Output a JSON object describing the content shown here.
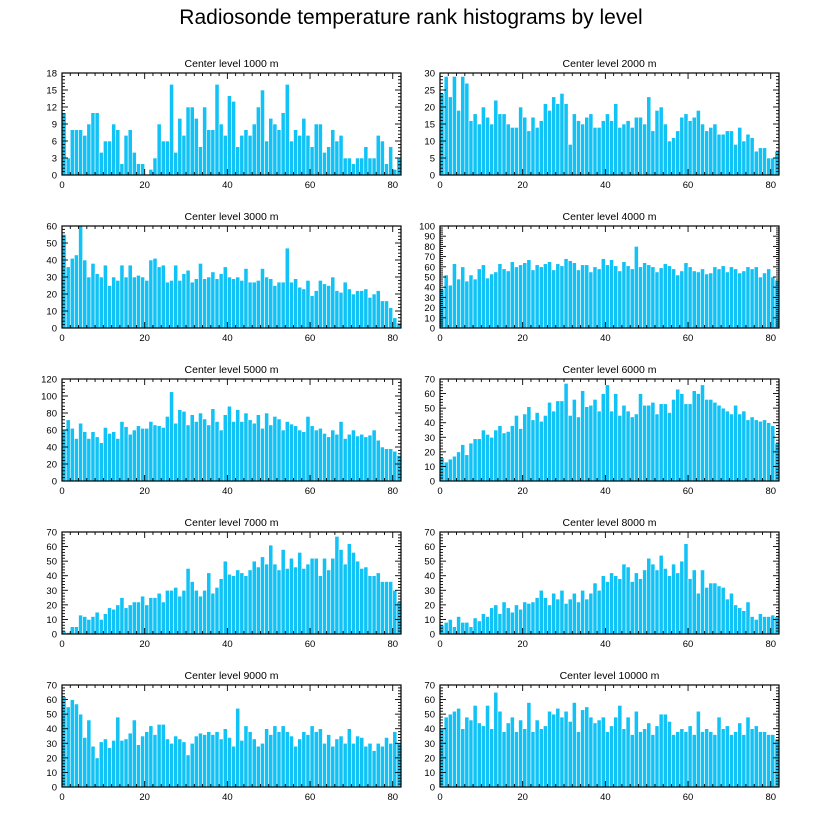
{
  "title": "Radiosonde temperature rank histograms by level",
  "colors": {
    "bar": "#10c2f5",
    "bar_edge": "#ffffff",
    "axis": "#000000"
  },
  "chart_data": [
    {
      "type": "bar",
      "title": "Center level 1000 m",
      "xlim": [
        0,
        82
      ],
      "ylim": [
        0,
        18
      ],
      "xticks": [
        0,
        20,
        40,
        60,
        80
      ],
      "yticks": [
        0,
        3,
        6,
        9,
        12,
        15,
        18
      ],
      "values": [
        11,
        3,
        8,
        8,
        8,
        7,
        9,
        11,
        11,
        4,
        6,
        6,
        9,
        8,
        2,
        7,
        8,
        4,
        2,
        2,
        0,
        1,
        3,
        9,
        6,
        6,
        16,
        4,
        10,
        7,
        12,
        12,
        10,
        5,
        12,
        8,
        8,
        16,
        9,
        7,
        14,
        13,
        5,
        7,
        8,
        7,
        9,
        12,
        15,
        6,
        10,
        9,
        8,
        11,
        16,
        6,
        8,
        7,
        10,
        7,
        5,
        9,
        9,
        4,
        5,
        8,
        6,
        7,
        3,
        3,
        2,
        3,
        3,
        5,
        3,
        3,
        7,
        6,
        2,
        5,
        1,
        3
      ],
      "xlabel": "",
      "ylabel": ""
    },
    {
      "type": "bar",
      "title": "Center level 2000 m",
      "xlim": [
        0,
        82
      ],
      "ylim": [
        0,
        30
      ],
      "xticks": [
        0,
        20,
        40,
        60,
        80
      ],
      "yticks": [
        0,
        5,
        10,
        15,
        20,
        25,
        30
      ],
      "values": [
        24,
        29,
        23,
        29,
        19,
        29,
        27,
        16,
        18,
        15,
        20,
        17,
        15,
        22,
        18,
        18,
        15,
        14,
        14,
        20,
        17,
        13,
        17,
        14,
        16,
        21,
        19,
        23,
        21,
        24,
        21,
        9,
        18,
        16,
        15,
        17,
        18,
        14,
        14,
        16,
        18,
        16,
        21,
        14,
        15,
        16,
        14,
        17,
        17,
        15,
        23,
        13,
        19,
        20,
        15,
        10,
        11,
        13,
        17,
        18,
        16,
        17,
        19,
        15,
        13,
        14,
        15,
        12,
        12,
        13,
        13,
        9,
        14,
        10,
        12,
        11,
        7,
        8,
        8,
        5,
        5,
        7
      ],
      "xlabel": "",
      "ylabel": ""
    },
    {
      "type": "bar",
      "title": "Center level 3000 m",
      "xlim": [
        0,
        82
      ],
      "ylim": [
        0,
        60
      ],
      "xticks": [
        0,
        20,
        40,
        60,
        80
      ],
      "yticks": [
        0,
        10,
        20,
        30,
        40,
        50,
        60
      ],
      "values": [
        55,
        36,
        41,
        43,
        60,
        40,
        30,
        38,
        32,
        30,
        37,
        25,
        30,
        28,
        37,
        30,
        37,
        30,
        31,
        30,
        28,
        40,
        41,
        36,
        37,
        27,
        28,
        37,
        28,
        32,
        34,
        27,
        29,
        38,
        29,
        30,
        33,
        29,
        32,
        36,
        30,
        29,
        30,
        28,
        35,
        27,
        27,
        28,
        35,
        30,
        29,
        25,
        27,
        27,
        47,
        27,
        29,
        24,
        23,
        28,
        19,
        22,
        28,
        26,
        25,
        30,
        22,
        21,
        27,
        23,
        20,
        22,
        22,
        23,
        18,
        20,
        22,
        16,
        16,
        12,
        6,
        3
      ],
      "xlabel": "",
      "ylabel": ""
    },
    {
      "type": "bar",
      "title": "Center level 4000 m",
      "xlim": [
        0,
        82
      ],
      "ylim": [
        0,
        100
      ],
      "xticks": [
        0,
        20,
        40,
        60,
        80
      ],
      "yticks": [
        0,
        10,
        20,
        30,
        40,
        50,
        60,
        70,
        80,
        90,
        100
      ],
      "values": [
        38,
        52,
        42,
        63,
        48,
        60,
        46,
        52,
        48,
        58,
        62,
        49,
        53,
        55,
        63,
        58,
        56,
        65,
        60,
        62,
        64,
        67,
        57,
        62,
        60,
        63,
        65,
        57,
        63,
        61,
        68,
        66,
        64,
        57,
        62,
        62,
        55,
        60,
        58,
        68,
        62,
        67,
        61,
        56,
        65,
        61,
        58,
        80,
        60,
        64,
        62,
        60,
        55,
        59,
        63,
        61,
        58,
        52,
        56,
        64,
        60,
        56,
        55,
        58,
        53,
        54,
        60,
        58,
        61,
        55,
        60,
        58,
        54,
        56,
        60,
        58,
        60,
        50,
        54,
        58,
        50,
        47
      ],
      "xlabel": "",
      "ylabel": ""
    },
    {
      "type": "bar",
      "title": "Center level 5000 m",
      "xlim": [
        0,
        82
      ],
      "ylim": [
        0,
        120
      ],
      "xticks": [
        0,
        20,
        40,
        60,
        80
      ],
      "yticks": [
        0,
        20,
        40,
        60,
        80,
        100,
        120
      ],
      "values": [
        60,
        72,
        62,
        50,
        68,
        58,
        50,
        58,
        52,
        45,
        63,
        56,
        58,
        50,
        70,
        64,
        55,
        60,
        65,
        62,
        62,
        70,
        66,
        65,
        63,
        76,
        105,
        68,
        84,
        82,
        66,
        78,
        70,
        80,
        73,
        66,
        85,
        70,
        60,
        78,
        88,
        70,
        84,
        70,
        80,
        72,
        68,
        78,
        62,
        80,
        66,
        76,
        73,
        60,
        70,
        67,
        65,
        60,
        58,
        76,
        65,
        60,
        62,
        56,
        52,
        60,
        55,
        70,
        50,
        55,
        60,
        53,
        55,
        52,
        54,
        60,
        48,
        40,
        38,
        38,
        35,
        30
      ],
      "xlabel": "",
      "ylabel": ""
    },
    {
      "type": "bar",
      "title": "Center level 6000 m",
      "xlim": [
        0,
        82
      ],
      "ylim": [
        0,
        70
      ],
      "xticks": [
        0,
        20,
        40,
        60,
        80
      ],
      "yticks": [
        0,
        10,
        20,
        30,
        40,
        50,
        60,
        70
      ],
      "values": [
        16,
        13,
        15,
        17,
        20,
        25,
        18,
        26,
        29,
        29,
        35,
        32,
        30,
        35,
        38,
        33,
        34,
        38,
        45,
        36,
        46,
        51,
        42,
        47,
        41,
        45,
        54,
        48,
        55,
        55,
        67,
        45,
        56,
        44,
        62,
        51,
        52,
        56,
        48,
        60,
        66,
        48,
        60,
        45,
        52,
        48,
        44,
        46,
        60,
        52,
        52,
        54,
        46,
        53,
        53,
        47,
        56,
        63,
        60,
        53,
        53,
        62,
        60,
        66,
        56,
        56,
        54,
        52,
        50,
        48,
        46,
        52,
        46,
        48,
        42,
        44,
        42,
        41,
        42,
        40,
        38,
        26
      ],
      "xlabel": "",
      "ylabel": ""
    },
    {
      "type": "bar",
      "title": "Center level 7000 m",
      "xlim": [
        0,
        82
      ],
      "ylim": [
        0,
        70
      ],
      "xticks": [
        0,
        20,
        40,
        60,
        80
      ],
      "yticks": [
        0,
        10,
        20,
        30,
        40,
        50,
        60,
        70
      ],
      "values": [
        2,
        1,
        5,
        5,
        13,
        12,
        10,
        12,
        15,
        10,
        14,
        18,
        17,
        20,
        25,
        18,
        20,
        22,
        22,
        26,
        20,
        25,
        25,
        28,
        22,
        30,
        30,
        32,
        26,
        30,
        45,
        36,
        30,
        26,
        30,
        42,
        28,
        32,
        38,
        50,
        41,
        40,
        44,
        42,
        40,
        44,
        50,
        46,
        53,
        48,
        61,
        48,
        44,
        58,
        45,
        52,
        46,
        56,
        45,
        48,
        52,
        52,
        40,
        52,
        44,
        52,
        67,
        58,
        48,
        62,
        56,
        50,
        45,
        46,
        40,
        40,
        42,
        36,
        36,
        36,
        30,
        22
      ],
      "xlabel": "",
      "ylabel": ""
    },
    {
      "type": "bar",
      "title": "Center level 8000 m",
      "xlim": [
        0,
        82
      ],
      "ylim": [
        0,
        70
      ],
      "xticks": [
        0,
        20,
        40,
        60,
        80
      ],
      "yticks": [
        0,
        10,
        20,
        30,
        40,
        50,
        60,
        70
      ],
      "values": [
        6,
        8,
        10,
        5,
        12,
        8,
        8,
        5,
        11,
        9,
        14,
        12,
        18,
        20,
        14,
        22,
        18,
        15,
        20,
        17,
        22,
        21,
        22,
        25,
        30,
        25,
        20,
        28,
        24,
        30,
        21,
        24,
        28,
        22,
        30,
        24,
        28,
        35,
        30,
        40,
        36,
        42,
        40,
        38,
        48,
        46,
        36,
        42,
        38,
        44,
        52,
        48,
        44,
        54,
        45,
        40,
        48,
        42,
        50,
        62,
        38,
        44,
        28,
        44,
        32,
        35,
        35,
        33,
        32,
        24,
        28,
        20,
        18,
        16,
        22,
        12,
        10,
        14,
        12,
        12,
        13,
        12
      ],
      "xlabel": "",
      "ylabel": ""
    },
    {
      "type": "bar",
      "title": "Center level 9000 m",
      "xlim": [
        0,
        82
      ],
      "ylim": [
        0,
        70
      ],
      "xticks": [
        0,
        20,
        40,
        60,
        80
      ],
      "yticks": [
        0,
        10,
        20,
        30,
        40,
        50,
        60,
        70
      ],
      "values": [
        62,
        55,
        60,
        57,
        50,
        34,
        46,
        28,
        20,
        31,
        33,
        27,
        32,
        48,
        32,
        33,
        37,
        46,
        29,
        35,
        38,
        42,
        36,
        43,
        43,
        33,
        30,
        35,
        33,
        31,
        22,
        30,
        35,
        37,
        36,
        38,
        36,
        38,
        33,
        40,
        34,
        28,
        54,
        32,
        42,
        38,
        33,
        28,
        30,
        40,
        36,
        42,
        38,
        42,
        38,
        35,
        28,
        33,
        38,
        36,
        42,
        38,
        40,
        30,
        36,
        28,
        33,
        35,
        30,
        40,
        30,
        35,
        34,
        28,
        30,
        25,
        30,
        28,
        34,
        30,
        38,
        30
      ],
      "xlabel": "",
      "ylabel": ""
    },
    {
      "type": "bar",
      "title": "Center level 10000 m",
      "xlim": [
        0,
        82
      ],
      "ylim": [
        0,
        70
      ],
      "xticks": [
        0,
        20,
        40,
        60,
        80
      ],
      "yticks": [
        0,
        10,
        20,
        30,
        40,
        50,
        60,
        70
      ],
      "values": [
        40,
        48,
        50,
        52,
        54,
        40,
        48,
        46,
        56,
        44,
        42,
        56,
        40,
        65,
        52,
        38,
        44,
        48,
        38,
        46,
        40,
        58,
        38,
        46,
        40,
        42,
        52,
        50,
        54,
        48,
        52,
        45,
        58,
        38,
        53,
        55,
        48,
        44,
        46,
        48,
        38,
        42,
        48,
        56,
        40,
        48,
        36,
        52,
        38,
        40,
        44,
        36,
        42,
        50,
        50,
        45,
        36,
        38,
        40,
        38,
        42,
        36,
        52,
        38,
        40,
        38,
        36,
        48,
        40,
        42,
        36,
        38,
        44,
        36,
        48,
        40,
        42,
        38,
        38,
        36,
        36,
        33
      ],
      "xlabel": "",
      "ylabel": ""
    }
  ]
}
